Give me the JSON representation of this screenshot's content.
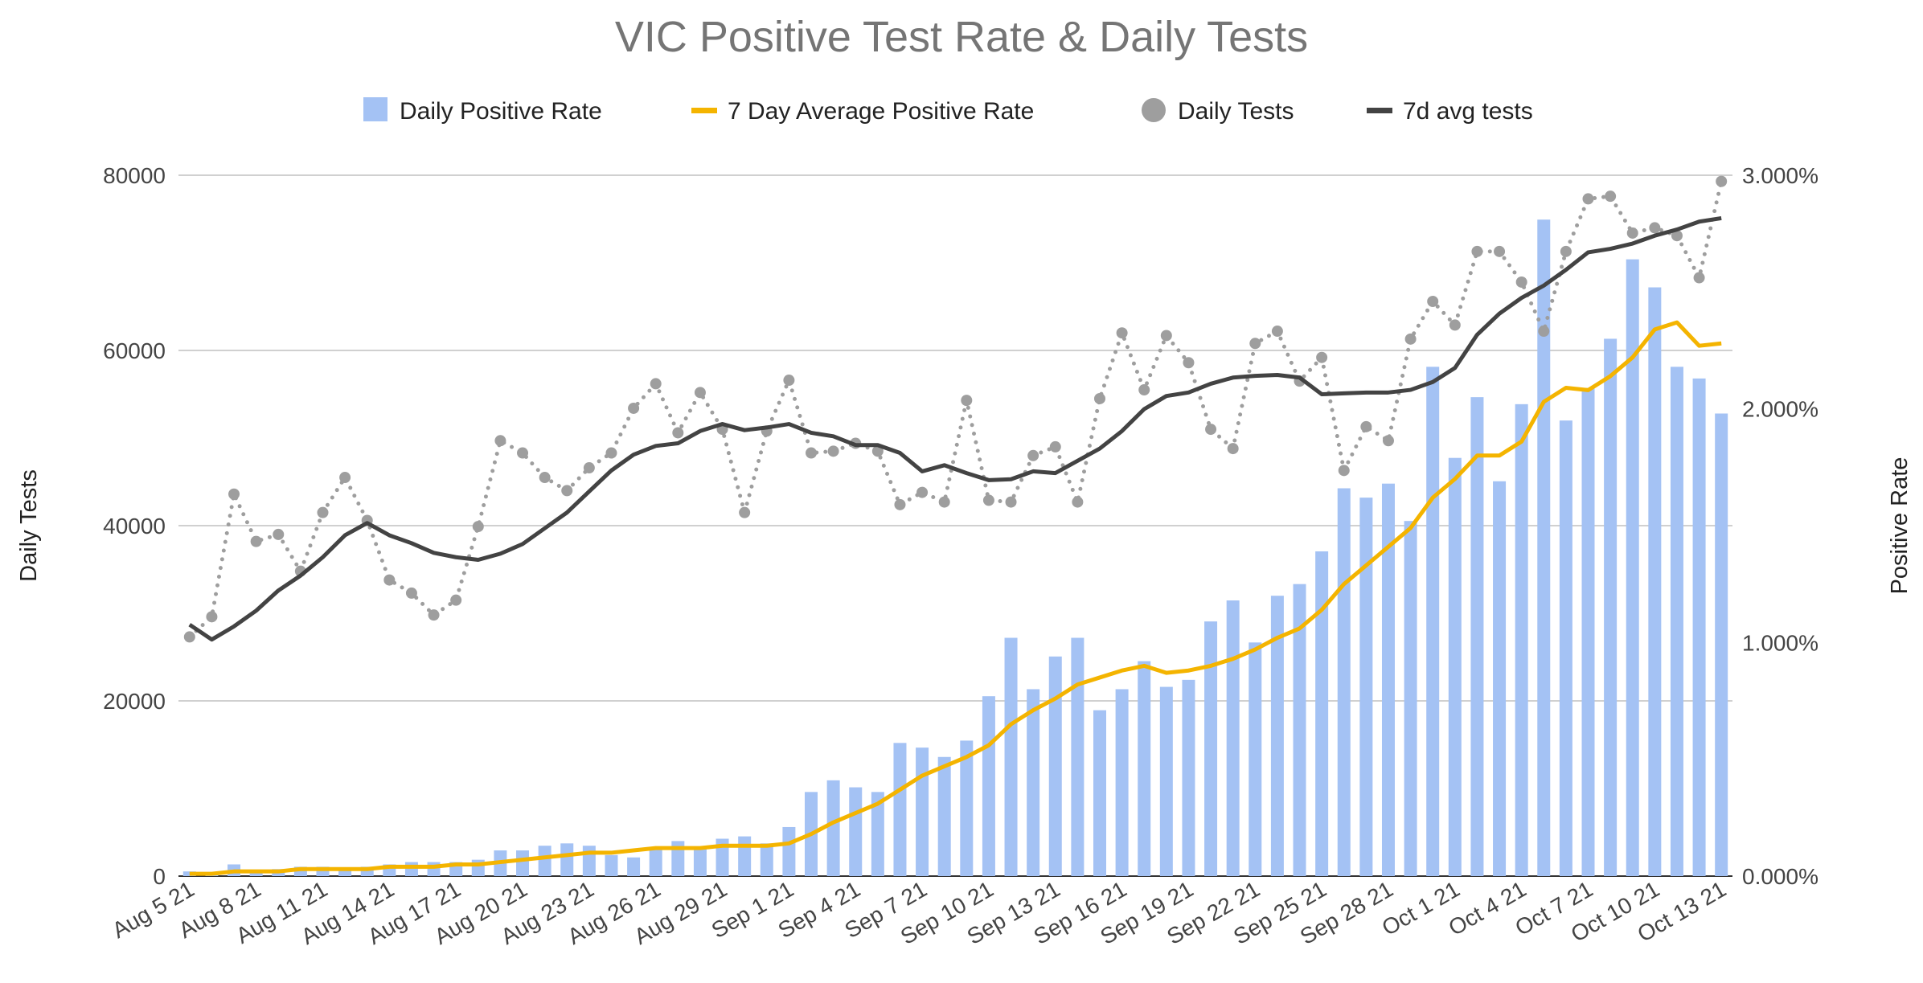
{
  "chart_data": {
    "type": "bar",
    "title": "VIC Positive Test Rate & Daily Tests",
    "xlabel": "",
    "ylabel_left": "Daily Tests",
    "ylabel_right": "Positive Rate",
    "ylim_left": [
      0,
      80000
    ],
    "ylim_right": [
      0,
      3
    ],
    "left_ticks": [
      "0",
      "20000",
      "40000",
      "60000",
      "80000"
    ],
    "right_ticks": [
      "0.000%",
      "1.000%",
      "2.000%",
      "3.000%"
    ],
    "grid": true,
    "legend_position": "top",
    "colors": {
      "bars": "#a4c2f4",
      "avg_rate": "#f4b400",
      "daily_tests": "#9e9e9e",
      "avg_tests": "#434343"
    },
    "x_tick_labels": [
      "Aug 5 21",
      "Aug 8 21",
      "Aug 11 21",
      "Aug 14 21",
      "Aug 17 21",
      "Aug 20 21",
      "Aug 23 21",
      "Aug 26 21",
      "Aug 29 21",
      "Sep 1 21",
      "Sep 4 21",
      "Sep 7 21",
      "Sep 10 21",
      "Sep 13 21",
      "Sep 16 21",
      "Sep 19 21",
      "Sep 22 21",
      "Sep 25 21",
      "Sep 28 21",
      "Oct 1 21",
      "Oct 4 21",
      "Oct 7 21",
      "Oct 10 21",
      "Oct 13 21"
    ],
    "x_tick_every": 3,
    "days": 70,
    "series": [
      {
        "name": "Daily Positive Rate",
        "kind": "bar",
        "axis": "right",
        "unit": "%",
        "values": [
          0.02,
          0.01,
          0.05,
          0.02,
          0.03,
          0.04,
          0.04,
          0.03,
          0.04,
          0.05,
          0.06,
          0.06,
          0.06,
          0.07,
          0.11,
          0.11,
          0.13,
          0.14,
          0.13,
          0.09,
          0.08,
          0.12,
          0.15,
          0.12,
          0.16,
          0.17,
          0.14,
          0.21,
          0.36,
          0.41,
          0.38,
          0.36,
          0.57,
          0.55,
          0.51,
          0.58,
          0.77,
          1.02,
          0.8,
          0.94,
          1.02,
          0.71,
          0.8,
          0.92,
          0.81,
          0.84,
          1.09,
          1.18,
          1.0,
          1.2,
          1.25,
          1.39,
          1.66,
          1.62,
          1.68,
          1.52,
          2.18,
          1.79,
          2.05,
          1.69,
          2.02,
          2.81,
          1.95,
          2.09,
          2.3,
          2.64,
          2.52,
          2.18,
          2.13,
          1.98
        ]
      },
      {
        "name": "7 Day Average Positive Rate",
        "kind": "line",
        "axis": "right",
        "unit": "%",
        "values": [
          0.01,
          0.01,
          0.02,
          0.02,
          0.02,
          0.03,
          0.03,
          0.03,
          0.03,
          0.04,
          0.04,
          0.04,
          0.05,
          0.05,
          0.06,
          0.07,
          0.08,
          0.09,
          0.1,
          0.1,
          0.11,
          0.12,
          0.12,
          0.12,
          0.13,
          0.13,
          0.13,
          0.14,
          0.18,
          0.23,
          0.27,
          0.31,
          0.37,
          0.43,
          0.47,
          0.51,
          0.56,
          0.65,
          0.71,
          0.76,
          0.82,
          0.85,
          0.88,
          0.9,
          0.87,
          0.88,
          0.9,
          0.93,
          0.97,
          1.02,
          1.06,
          1.14,
          1.25,
          1.33,
          1.41,
          1.49,
          1.62,
          1.7,
          1.8,
          1.8,
          1.86,
          2.03,
          2.09,
          2.08,
          2.14,
          2.22,
          2.34,
          2.37,
          2.27,
          2.28
        ]
      },
      {
        "name": "Daily Tests",
        "kind": "dotted-scatter",
        "axis": "left",
        "values": [
          27300,
          29600,
          43600,
          38200,
          39000,
          34800,
          41500,
          45500,
          40600,
          33800,
          32300,
          29800,
          31500,
          39900,
          49700,
          48300,
          45500,
          44000,
          46600,
          48300,
          53400,
          56200,
          50600,
          55200,
          51000,
          41500,
          50800,
          56600,
          48300,
          48500,
          49400,
          48500,
          42400,
          43800,
          42700,
          54300,
          42900,
          42700,
          48000,
          49000,
          42700,
          54500,
          62000,
          55500,
          61700,
          58600,
          51000,
          48800,
          60800,
          62200,
          56500,
          59200,
          46300,
          51300,
          49700,
          61300,
          65600,
          62900,
          71300,
          71300,
          67800,
          62200,
          71300,
          77300,
          77600,
          73400,
          74000,
          73100,
          68300,
          79300
        ]
      },
      {
        "name": "7d avg tests",
        "kind": "line",
        "axis": "left",
        "values": [
          28700,
          27000,
          28500,
          30300,
          32600,
          34300,
          36400,
          38900,
          40300,
          38900,
          38000,
          36900,
          36400,
          36100,
          36800,
          37900,
          39700,
          41500,
          43900,
          46300,
          48100,
          49100,
          49400,
          50800,
          51600,
          50900,
          51200,
          51600,
          50600,
          50200,
          49200,
          49200,
          48300,
          46200,
          46900,
          46000,
          45200,
          45300,
          46200,
          46000,
          47400,
          48800,
          50800,
          53300,
          54800,
          55200,
          56200,
          56900,
          57100,
          57200,
          56900,
          55000,
          55100,
          55200,
          55200,
          55500,
          56400,
          58000,
          61800,
          64200,
          66000,
          67400,
          69200,
          71200,
          71600,
          72200,
          73100,
          73800,
          74700,
          75100
        ]
      }
    ]
  }
}
